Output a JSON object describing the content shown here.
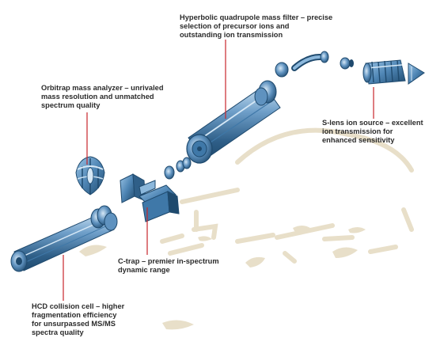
{
  "diagram": {
    "colors": {
      "component_dark": "#1f4a6e",
      "component_mid": "#3f78a8",
      "component_light": "#8cb8dc",
      "component_highlight": "#c9e0f2",
      "leader_line": "#c8242b",
      "background_shapes": "#e8dfc9",
      "text": "#2b2b2b"
    },
    "labels": {
      "quadrupole": [
        "Hyperbolic quadrupole mass filter – precise",
        "selection of precursor ions and",
        "outstanding ion transmission"
      ],
      "orbitrap": [
        "Orbitrap mass analyzer – unrivaled",
        "mass resolution and unmatched",
        "spectrum quality"
      ],
      "slens": [
        "S-lens ion source – excellent",
        "ion transmission for",
        "enhanced sensitivity"
      ],
      "ctrap": [
        "C-trap – premier in-spectrum",
        "dynamic range"
      ],
      "hcd": [
        "HCD collision cell – higher",
        "fragmentation efficiency",
        "for unsurpassed MS/MS",
        "spectra quality"
      ]
    }
  }
}
